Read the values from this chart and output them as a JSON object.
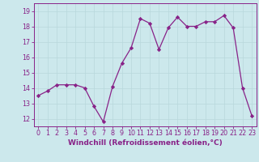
{
  "x": [
    0,
    1,
    2,
    3,
    4,
    5,
    6,
    7,
    8,
    9,
    10,
    11,
    12,
    13,
    14,
    15,
    16,
    17,
    18,
    19,
    20,
    21,
    22,
    23
  ],
  "y": [
    13.5,
    13.8,
    14.2,
    14.2,
    14.2,
    14.0,
    12.8,
    11.8,
    14.1,
    15.6,
    16.6,
    18.5,
    18.2,
    16.5,
    17.9,
    18.6,
    18.0,
    18.0,
    18.3,
    18.3,
    18.7,
    17.9,
    14.0,
    12.2
  ],
  "line_color": "#882288",
  "marker": "D",
  "markersize": 2.2,
  "linewidth": 0.9,
  "xlabel": "Windchill (Refroidissement éolien,°C)",
  "xlabel_fontsize": 6.5,
  "ylim": [
    11.5,
    19.5
  ],
  "xlim": [
    -0.5,
    23.5
  ],
  "yticks": [
    12,
    13,
    14,
    15,
    16,
    17,
    18,
    19
  ],
  "xticks": [
    0,
    1,
    2,
    3,
    4,
    5,
    6,
    7,
    8,
    9,
    10,
    11,
    12,
    13,
    14,
    15,
    16,
    17,
    18,
    19,
    20,
    21,
    22,
    23
  ],
  "tick_fontsize": 5.8,
  "background_color": "#cce8ec",
  "grid_color": "#b8d8dc",
  "spine_color": "#882288"
}
